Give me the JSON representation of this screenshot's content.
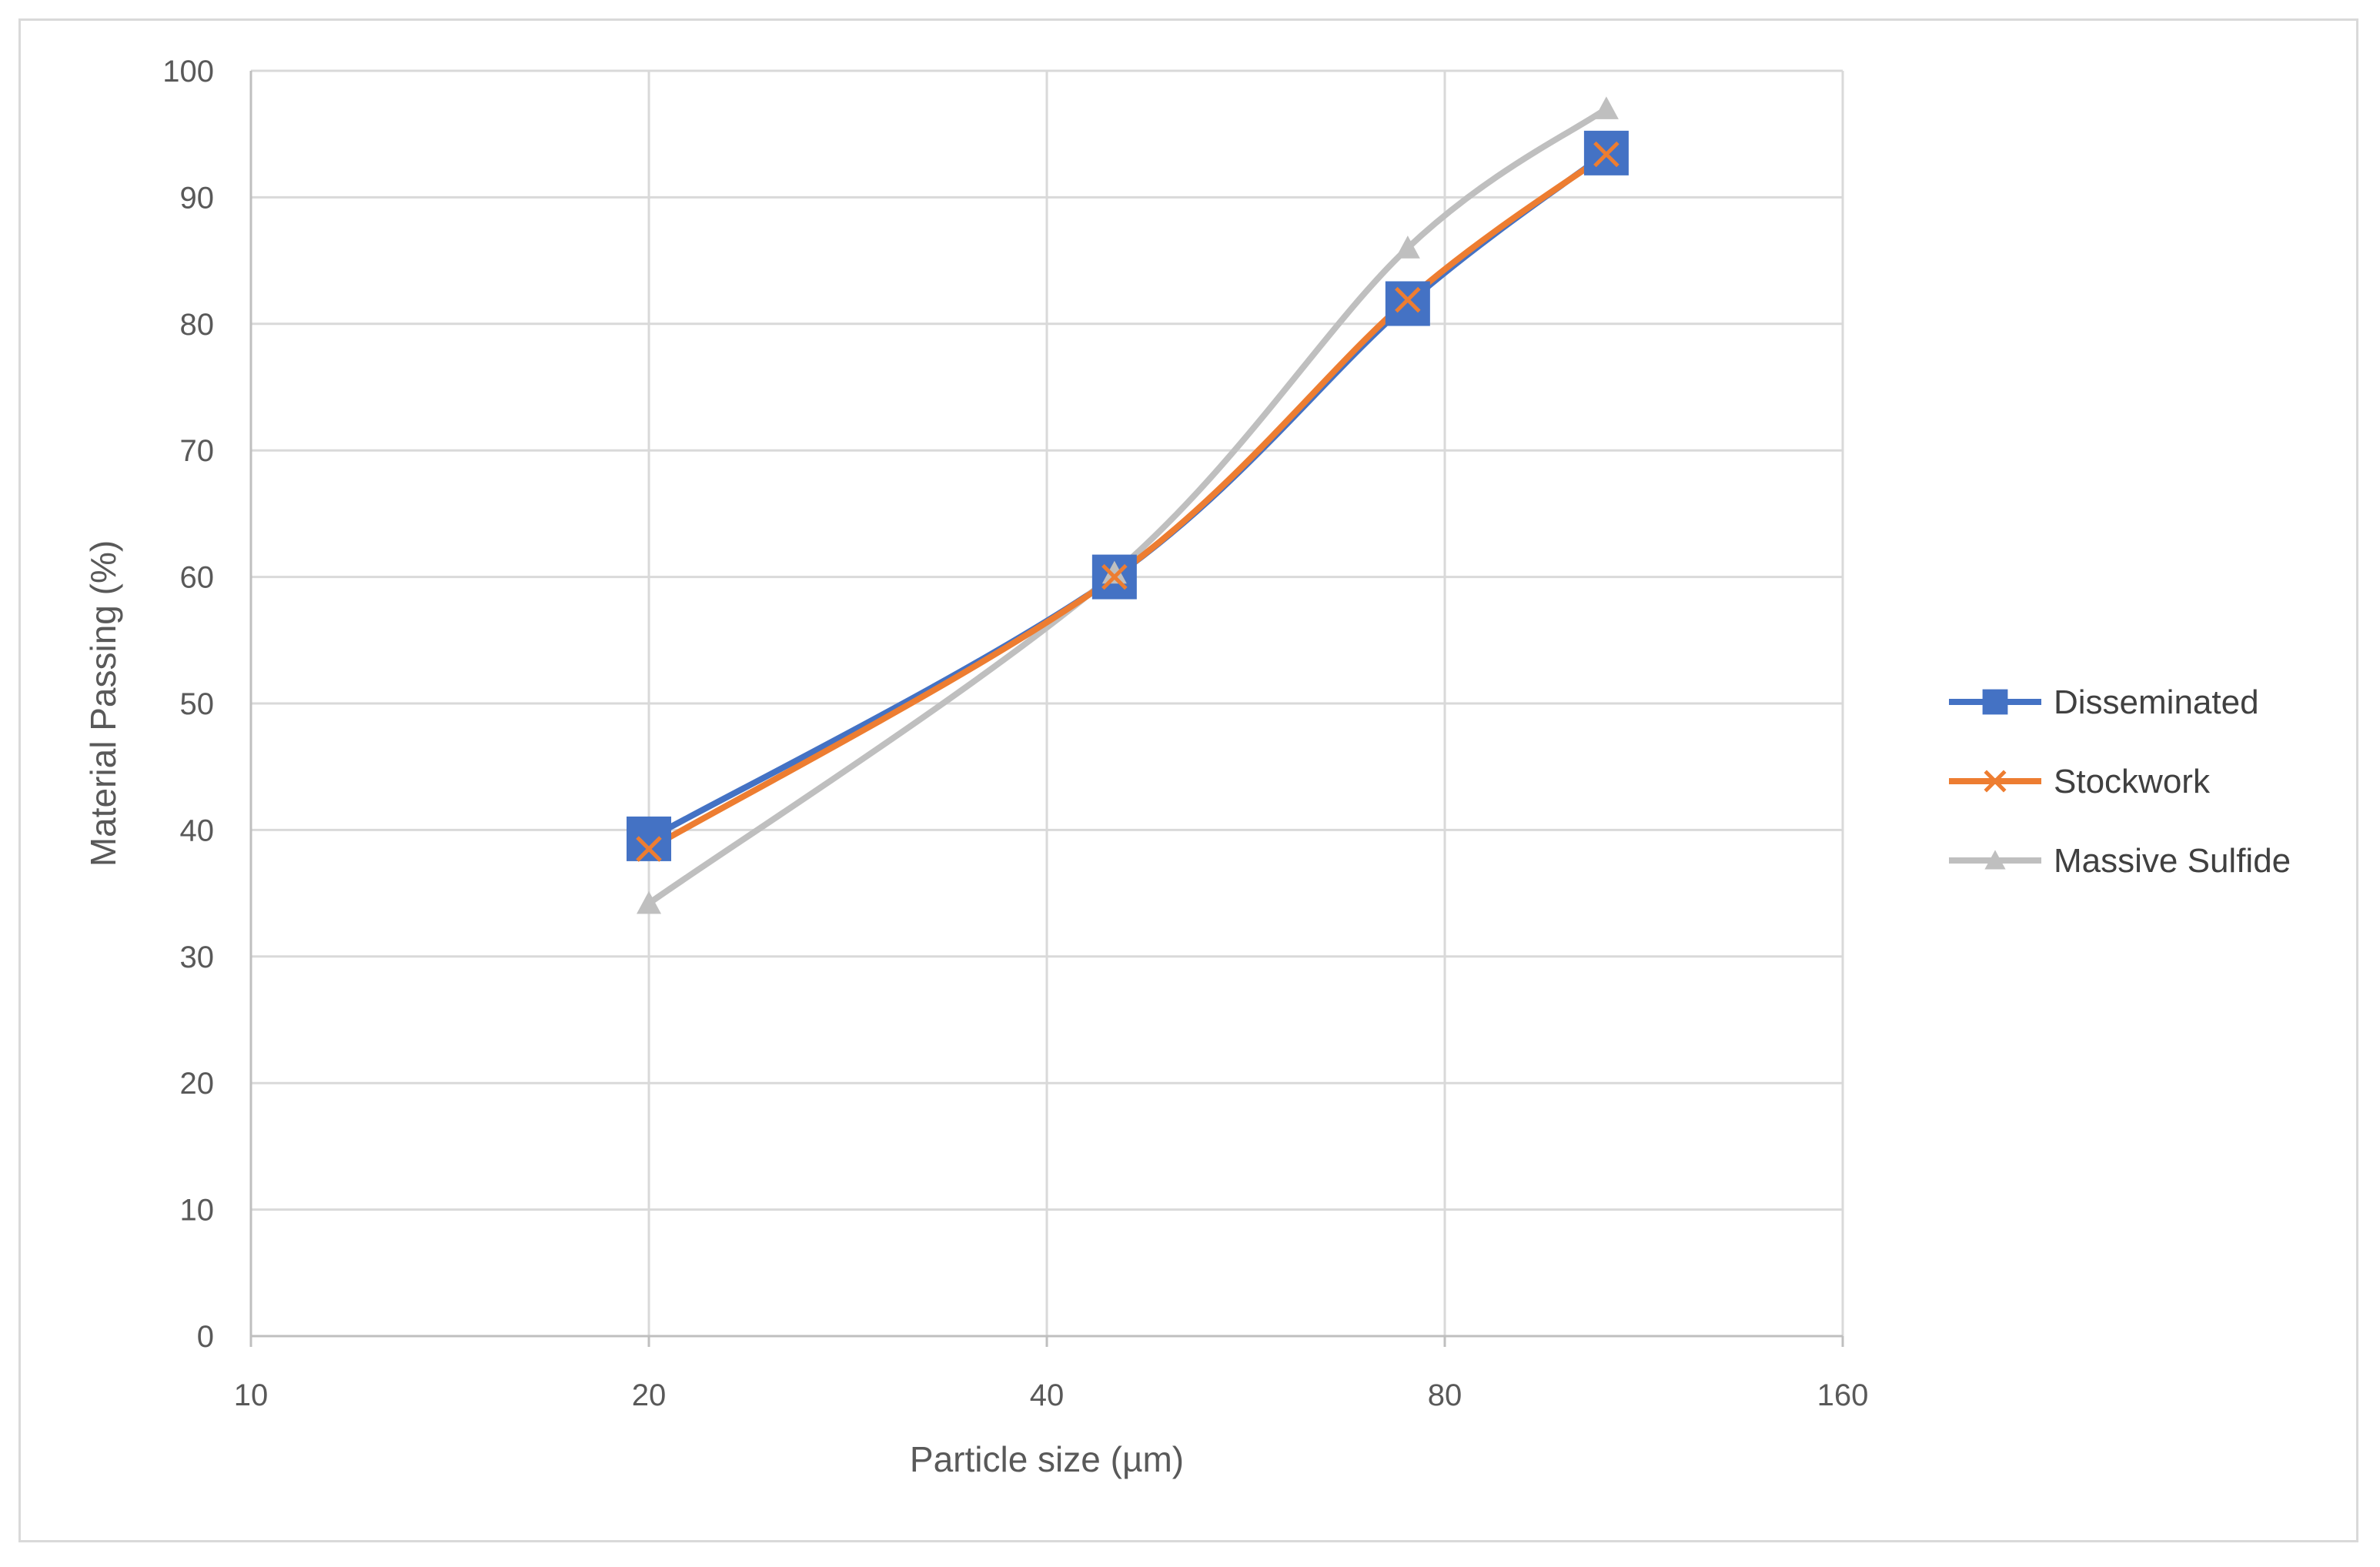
{
  "chart_data": {
    "type": "line",
    "title": "",
    "xlabel": "Particle size (µm)",
    "ylabel": "Material Passing (%)",
    "x_scale": "log2",
    "xlim": [
      10,
      160
    ],
    "ylim": [
      0,
      100
    ],
    "x_ticks": [
      "10",
      "20",
      "40",
      "80",
      "160"
    ],
    "y_ticks": [
      "0",
      "10",
      "20",
      "30",
      "40",
      "50",
      "60",
      "70",
      "80",
      "90",
      "100"
    ],
    "grid": true,
    "legend_position": "right",
    "x": [
      20,
      45,
      75,
      106
    ],
    "series": [
      {
        "name": "Disseminated",
        "values": [
          39.3,
          60.0,
          81.6,
          93.5
        ],
        "color": "#4472C4",
        "marker": "square",
        "smooth": true
      },
      {
        "name": "Stockwork",
        "values": [
          38.5,
          60.0,
          81.9,
          93.4
        ],
        "color": "#ED7D31",
        "marker": "x",
        "smooth": true
      },
      {
        "name": "Massive Sulfide",
        "values": [
          34.2,
          60.3,
          86.0,
          97.0
        ],
        "color": "#BFBFBF",
        "marker": "triangle",
        "smooth": true
      }
    ]
  }
}
